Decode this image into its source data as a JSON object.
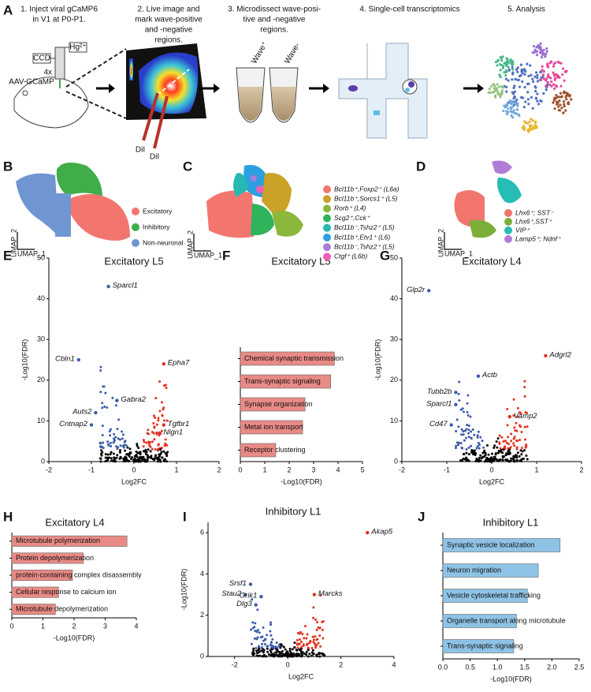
{
  "panel_letters": [
    "A",
    "B",
    "C",
    "D",
    "E",
    "F",
    "G",
    "H",
    "I",
    "J"
  ],
  "panel_a": {
    "steps": [
      [
        "1. Inject viral gCaMP6",
        "in V1 at P0-P1."
      ],
      [
        "2. Live image and",
        "mark wave-positive",
        "and -negative",
        "regions."
      ],
      [
        "3. Microdissect wave-posi-",
        "tive and -negative",
        "regions."
      ],
      [
        "4. Single-cell transcriptomics"
      ],
      [
        "5. Analysis"
      ]
    ],
    "labels": {
      "ccd": "CCD",
      "hg": "Hg²⁺",
      "obj": "4x",
      "virus": "AAV-GCaMP",
      "dil1": "DiI",
      "dil2": "DiI",
      "wave_pos": "Wave⁺",
      "wave_neg": "Wave-"
    }
  },
  "umap_axes": {
    "y": "UMAP_2",
    "x": "UMAP_1"
  },
  "umap_b": {
    "legend": [
      {
        "name": "Excitatory",
        "color": "#f2766e"
      },
      {
        "name": "Inhibitory",
        "color": "#3fae49"
      },
      {
        "name": "Non-neuronal",
        "color": "#7096d1"
      }
    ]
  },
  "umap_c": {
    "legend": [
      {
        "name": "Bcl11b⁺,Foxp2⁺ (L6a)",
        "color": "#f2766e"
      },
      {
        "name": "Bcl11b⁺,Sorcs1⁺ (L5)",
        "color": "#c9a227"
      },
      {
        "name": "Rorb⁺ (L4)",
        "color": "#8bb83a"
      },
      {
        "name": "Scg2⁺,Cck⁺",
        "color": "#2fb35b"
      },
      {
        "name": "Bcl11b⁻,Tshz2⁺ (L5)",
        "color": "#27b8b0"
      },
      {
        "name": "Bcl11b⁺,Etv1⁺ (L6)",
        "color": "#2c9fe0"
      },
      {
        "name": "Bcl11b⁻,Tshz2⁺ (L5)",
        "color": "#a97fd6"
      },
      {
        "name": "Ctgf⁺ (L6b)",
        "color": "#ee5fb8"
      }
    ]
  },
  "umap_d": {
    "legend": [
      {
        "name": "Lhx6⁺; SST⁻",
        "color": "#f2766e"
      },
      {
        "name": "Lhx6⁺,SST⁺",
        "color": "#7cae3a"
      },
      {
        "name": "VIP⁺",
        "color": "#25bdb6"
      },
      {
        "name": "Lamp5⁺; Ndnf⁺",
        "color": "#b07cd8"
      }
    ]
  },
  "chart_data": [
    {
      "type": "scatter",
      "title": "Excitatory L5",
      "xlabel": "Log2FC",
      "ylabel": "-Log10(FDR)",
      "xlim": [
        -2,
        2
      ],
      "ylim": [
        0,
        50
      ],
      "xticks": [
        -2,
        -1,
        0,
        1,
        2
      ],
      "yticks": [
        0,
        10,
        20,
        30,
        40,
        50
      ],
      "down_color": "#3b5ba9",
      "up_color": "#e2321f",
      "x": [
        -0.6,
        -1.3,
        0.7,
        -0.4,
        -0.9,
        -1.0,
        0.7,
        0.6
      ],
      "values": [
        43,
        25,
        24,
        15,
        12,
        9,
        9,
        7
      ],
      "point_labels": [
        "Sparcl1",
        "Cbln1",
        "Epha7",
        "Gabra2",
        "Auts2",
        "Cntnap2",
        "Tgfbr1",
        "Nlgn1"
      ]
    },
    {
      "type": "hbar",
      "title": "Excitatory L5",
      "xlabel": "-Log10(FDR)",
      "xlim": [
        0,
        5
      ],
      "xticks": [
        0,
        1,
        2,
        3,
        4,
        5
      ],
      "color": "#e88a85",
      "categories": [
        "Chemical synaptic transmission",
        "Trans-synaptic signaling",
        "Synapse organization",
        "Metal ion transport",
        "Receptor clustering"
      ],
      "values": [
        3.85,
        3.7,
        2.65,
        2.55,
        1.45
      ]
    },
    {
      "type": "scatter",
      "title": "Excitatory L4",
      "xlabel": "Log2FC",
      "ylabel": "-Log10(FDR)",
      "xlim": [
        -2,
        2
      ],
      "ylim": [
        0,
        50
      ],
      "xticks": [
        -2,
        -1,
        0,
        1,
        2
      ],
      "yticks": [
        0,
        10,
        20,
        30,
        40,
        50
      ],
      "down_color": "#3b5ba9",
      "up_color": "#e2321f",
      "x": [
        -1.4,
        1.2,
        -0.3,
        -0.8,
        -0.8,
        0.4,
        -0.9
      ],
      "values": [
        42,
        26,
        21,
        17,
        14,
        11,
        9
      ],
      "point_labels": [
        "Glp2r",
        "Adgrl2",
        "Actb",
        "Tubb2b",
        "Sparcl1",
        "Vamp2",
        "Cd47"
      ]
    },
    {
      "type": "hbar",
      "title": "Excitatory L4",
      "xlabel": "-Log10(FDR)",
      "xlim": [
        0,
        4
      ],
      "xticks": [
        0,
        1,
        2,
        3,
        4
      ],
      "color": "#e88a85",
      "categories": [
        "Microtubule polymerization",
        "Protein depolymerization",
        "protein-containing complex disassembly",
        "Cellular response to calcium ion",
        "Microtubule depolymerization"
      ],
      "values": [
        3.7,
        2.3,
        1.95,
        1.5,
        1.4
      ]
    },
    {
      "type": "scatter",
      "title": "Inhibitory L1",
      "xlabel": "Log2FC",
      "ylabel": "-Log10(FDR)",
      "xlim": [
        -3,
        4
      ],
      "ylim": [
        0,
        6.5
      ],
      "xticks": [
        -2,
        0,
        2,
        4
      ],
      "yticks": [
        0,
        2,
        4,
        6
      ],
      "down_color": "#3b5ba9",
      "up_color": "#e2321f",
      "x": [
        3.0,
        -1.4,
        -1.6,
        -1.0,
        1.0,
        -1.2
      ],
      "values": [
        6,
        3.5,
        3.0,
        2.9,
        3.0,
        2.5
      ],
      "point_labels": [
        "Akap5",
        "Srsf1",
        "Stau2",
        "Grik1",
        "Marcks",
        "Dlg3"
      ]
    },
    {
      "type": "hbar",
      "title": "Inhibitory L1",
      "xlabel": "-Log10(FDR)",
      "xlim": [
        0,
        2.5
      ],
      "xticks": [
        {
          "value": 0,
          "label": "0.0"
        },
        0.5,
        {
          "value": 1,
          "label": "1.0"
        },
        1.5,
        {
          "value": 2,
          "label": "2.0"
        },
        2.5
      ],
      "color": "#8fc3e6",
      "categories": [
        "Synaptic vesicle localization",
        "Neuron migration",
        "Vesicle cytoskeletal trafficking",
        "Organelle transport along microtubule",
        "Trans-synaptic signaling"
      ],
      "values": [
        2.15,
        1.75,
        1.55,
        1.35,
        1.3
      ]
    }
  ]
}
